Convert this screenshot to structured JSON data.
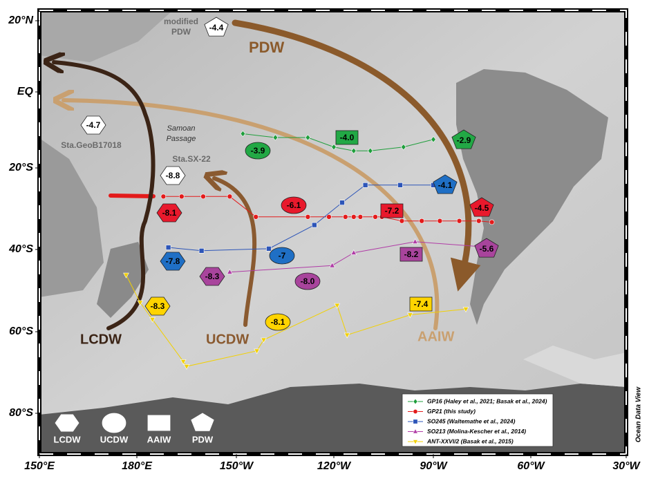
{
  "map": {
    "lat_ticks": [
      {
        "value": 20,
        "label": "20°N"
      },
      {
        "value": 0,
        "label": "EQ"
      },
      {
        "value": -20,
        "label": "20°S"
      },
      {
        "value": -40,
        "label": "40°S"
      },
      {
        "value": -60,
        "label": "60°S"
      },
      {
        "value": -80,
        "label": "80°S"
      }
    ],
    "lon_ticks": [
      {
        "value": 150,
        "label": "150°E"
      },
      {
        "value": 180,
        "label": "180°E"
      },
      {
        "value": 210,
        "label": "150°W"
      },
      {
        "value": 240,
        "label": "120°W"
      },
      {
        "value": 270,
        "label": "90°W"
      },
      {
        "value": 300,
        "label": "60°W"
      },
      {
        "value": 330,
        "label": "30°W"
      }
    ],
    "water_masses": [
      "PDW",
      "LCDW",
      "UCDW",
      "AAIW"
    ],
    "station_notes": {
      "modified_pdw": [
        "modified",
        "PDW"
      ],
      "samoan_passage": [
        "Samoan",
        "Passage"
      ],
      "geob": "Sta.GeoB17018",
      "sx22": "Sta.SX-22"
    },
    "tracks": [
      {
        "name": "GP16 (Haley et al., 2021; Basak et al., 2024)",
        "color": "#1f9e3c",
        "marker": "diamond",
        "lon": [
          212,
          222,
          232,
          240,
          246,
          251,
          261,
          270
        ],
        "lat": [
          -11,
          -12,
          -12,
          -14.5,
          -15.5,
          -15.5,
          -14.5,
          -12.5
        ]
      },
      {
        "name": "GP21 (this study)",
        "color": "#e31b1b",
        "marker": "circle",
        "lon": [
          188,
          193.5,
          200,
          208,
          216,
          232,
          238.5,
          243.5,
          246,
          248,
          252.5,
          254.5,
          260.5,
          266.5,
          272,
          278,
          284,
          288
        ],
        "lat": [
          -27,
          -27,
          -27,
          -27,
          -32,
          -32,
          -32,
          -32,
          -32,
          -32,
          -32,
          -32,
          -33,
          -33,
          -33,
          -33,
          -33,
          -33.3
        ]
      },
      {
        "name": "SO245 (Waltemathe et al., 2024)",
        "color": "#2d55b8",
        "marker": "square",
        "lon": [
          189.5,
          199.5,
          220,
          234,
          242.5,
          249.5,
          260,
          270
        ],
        "lat": [
          -39.5,
          -40.3,
          -39.8,
          -34,
          -28.5,
          -24.2,
          -24.2,
          -24.2
        ]
      },
      {
        "name": "SO213 (Molina-Kescher et al., 2014)",
        "color": "#b03ca6",
        "marker": "triangle",
        "lon": [
          208,
          239.5,
          246,
          264.5,
          284.5
        ],
        "lat": [
          -45.5,
          -43.9,
          -40.8,
          -38.1,
          -39.3
        ]
      },
      {
        "name": "ANT-XXVI/2 (Basak et al., 2015)",
        "color": "#f2d000",
        "marker": "triangle-down",
        "lon": [
          176.7,
          181,
          184.7,
          194,
          195,
          216.3,
          218.4,
          241,
          244,
          263,
          280
        ],
        "lat": [
          -46.2,
          -52.9,
          -57,
          -67.3,
          -68.5,
          -64.7,
          -62,
          -53.6,
          -60.8,
          -55.9,
          -54.5
        ]
      }
    ],
    "values": [
      {
        "text": "-4.4",
        "shape": "pentagon",
        "color": "#ffffff"
      },
      {
        "text": "-4.7",
        "shape": "hexagon",
        "color": "#ffffff"
      },
      {
        "text": "-8.8",
        "shape": "hexagon",
        "color": "#ffffff"
      },
      {
        "text": "-3.9",
        "shape": "ellipse",
        "color": "#22a845"
      },
      {
        "text": "-4.0",
        "shape": "rect",
        "color": "#22a845"
      },
      {
        "text": "-2.9",
        "shape": "pentagon",
        "color": "#22a845"
      },
      {
        "text": "-4.1",
        "shape": "pentagon",
        "color": "#1f6fc5"
      },
      {
        "text": "-6.1",
        "shape": "ellipse",
        "color": "#e8192c"
      },
      {
        "text": "-7.2",
        "shape": "rect",
        "color": "#e8192c"
      },
      {
        "text": "-4.5",
        "shape": "pentagon",
        "color": "#e8192c"
      },
      {
        "text": "-8.1",
        "shape": "hexagon",
        "color": "#e8192c"
      },
      {
        "text": "-7.8",
        "shape": "hexagon",
        "color": "#1f6fc5"
      },
      {
        "text": "-7",
        "shape": "ellipse",
        "color": "#1f6fc5"
      },
      {
        "text": "-5.6",
        "shape": "pentagon",
        "color": "#a8449c"
      },
      {
        "text": "-8.2",
        "shape": "rect",
        "color": "#a8449c"
      },
      {
        "text": "-8.3",
        "shape": "hexagon",
        "color": "#a8449c"
      },
      {
        "text": "-8.0",
        "shape": "ellipse",
        "color": "#a8449c"
      },
      {
        "text": "-8.3",
        "shape": "hexagon",
        "color": "#ffd400"
      },
      {
        "text": "-8.1",
        "shape": "ellipse",
        "color": "#ffd400"
      },
      {
        "text": "-7.4",
        "shape": "rect",
        "color": "#ffd400"
      }
    ],
    "shape_legend": [
      {
        "shape": "hexagon",
        "label": "LCDW"
      },
      {
        "shape": "ellipse",
        "label": "UCDW"
      },
      {
        "shape": "rect",
        "label": "AAIW"
      },
      {
        "shape": "pentagon",
        "label": "PDW"
      }
    ],
    "credit": "Ocean Data View"
  }
}
